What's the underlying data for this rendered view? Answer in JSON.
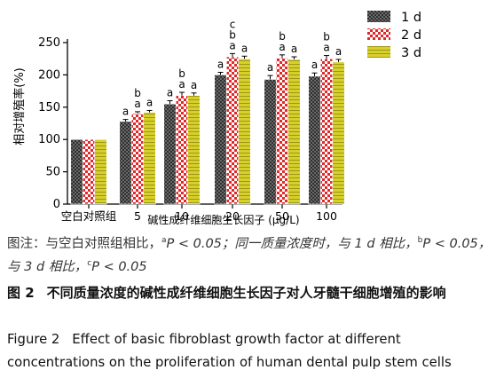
{
  "chart_data": {
    "type": "bar",
    "categories": [
      "空白对照组",
      "5",
      "10",
      "20",
      "50",
      "100"
    ],
    "series": [
      {
        "name": "1 d",
        "values": [
          100,
          128,
          155,
          200,
          193,
          198
        ]
      },
      {
        "name": "2 d",
        "values": [
          100,
          140,
          168,
          228,
          226,
          225
        ]
      },
      {
        "name": "3 d",
        "values": [
          100,
          142,
          168,
          225,
          224,
          220
        ]
      }
    ],
    "errors": [
      [
        0,
        3,
        5,
        4,
        6,
        5
      ],
      [
        0,
        3,
        5,
        5,
        5,
        5
      ],
      [
        0,
        3,
        4,
        4,
        4,
        4
      ]
    ],
    "significance": [
      [
        "",
        "a",
        "a",
        "a",
        "a",
        "a"
      ],
      [
        "",
        "b\na",
        "b\na",
        "c\nb\na",
        "b\na",
        "b\na"
      ],
      [
        "",
        "a",
        "a",
        "a",
        "a",
        "a"
      ]
    ],
    "ylabel": "相对增殖率(%)",
    "xlabel": "碱性成纤维细胞生长因子 (μg/L)",
    "ylim": [
      0,
      250
    ],
    "yticks": [
      0,
      50,
      100,
      150,
      200,
      250
    ],
    "legend_position": "top-right"
  },
  "colors": {
    "series1": "#2f2f2f",
    "series2": "#e0282a",
    "series3": "#d7d02a",
    "axis": "#000000"
  },
  "note": {
    "prefix": "图注：与空白对照组相比，",
    "sup_a": "a",
    "p_a": "P < 0.05；同一质量浓度时，与 1 d 相比，",
    "sup_b": "b",
    "p_b": "P < 0.05，与 3 d 相比，",
    "sup_c": "c",
    "p_c": "P < 0.05"
  },
  "caption": {
    "cn_fig": "图 2",
    "cn_text": "不同质量浓度的碱性成纤维细胞生长因子对人牙髓干细胞增殖的影响",
    "en_fig": "Figure 2",
    "en_text": "Effect of basic fibroblast growth factor at different concentrations on the proliferation of human dental pulp stem cells"
  }
}
